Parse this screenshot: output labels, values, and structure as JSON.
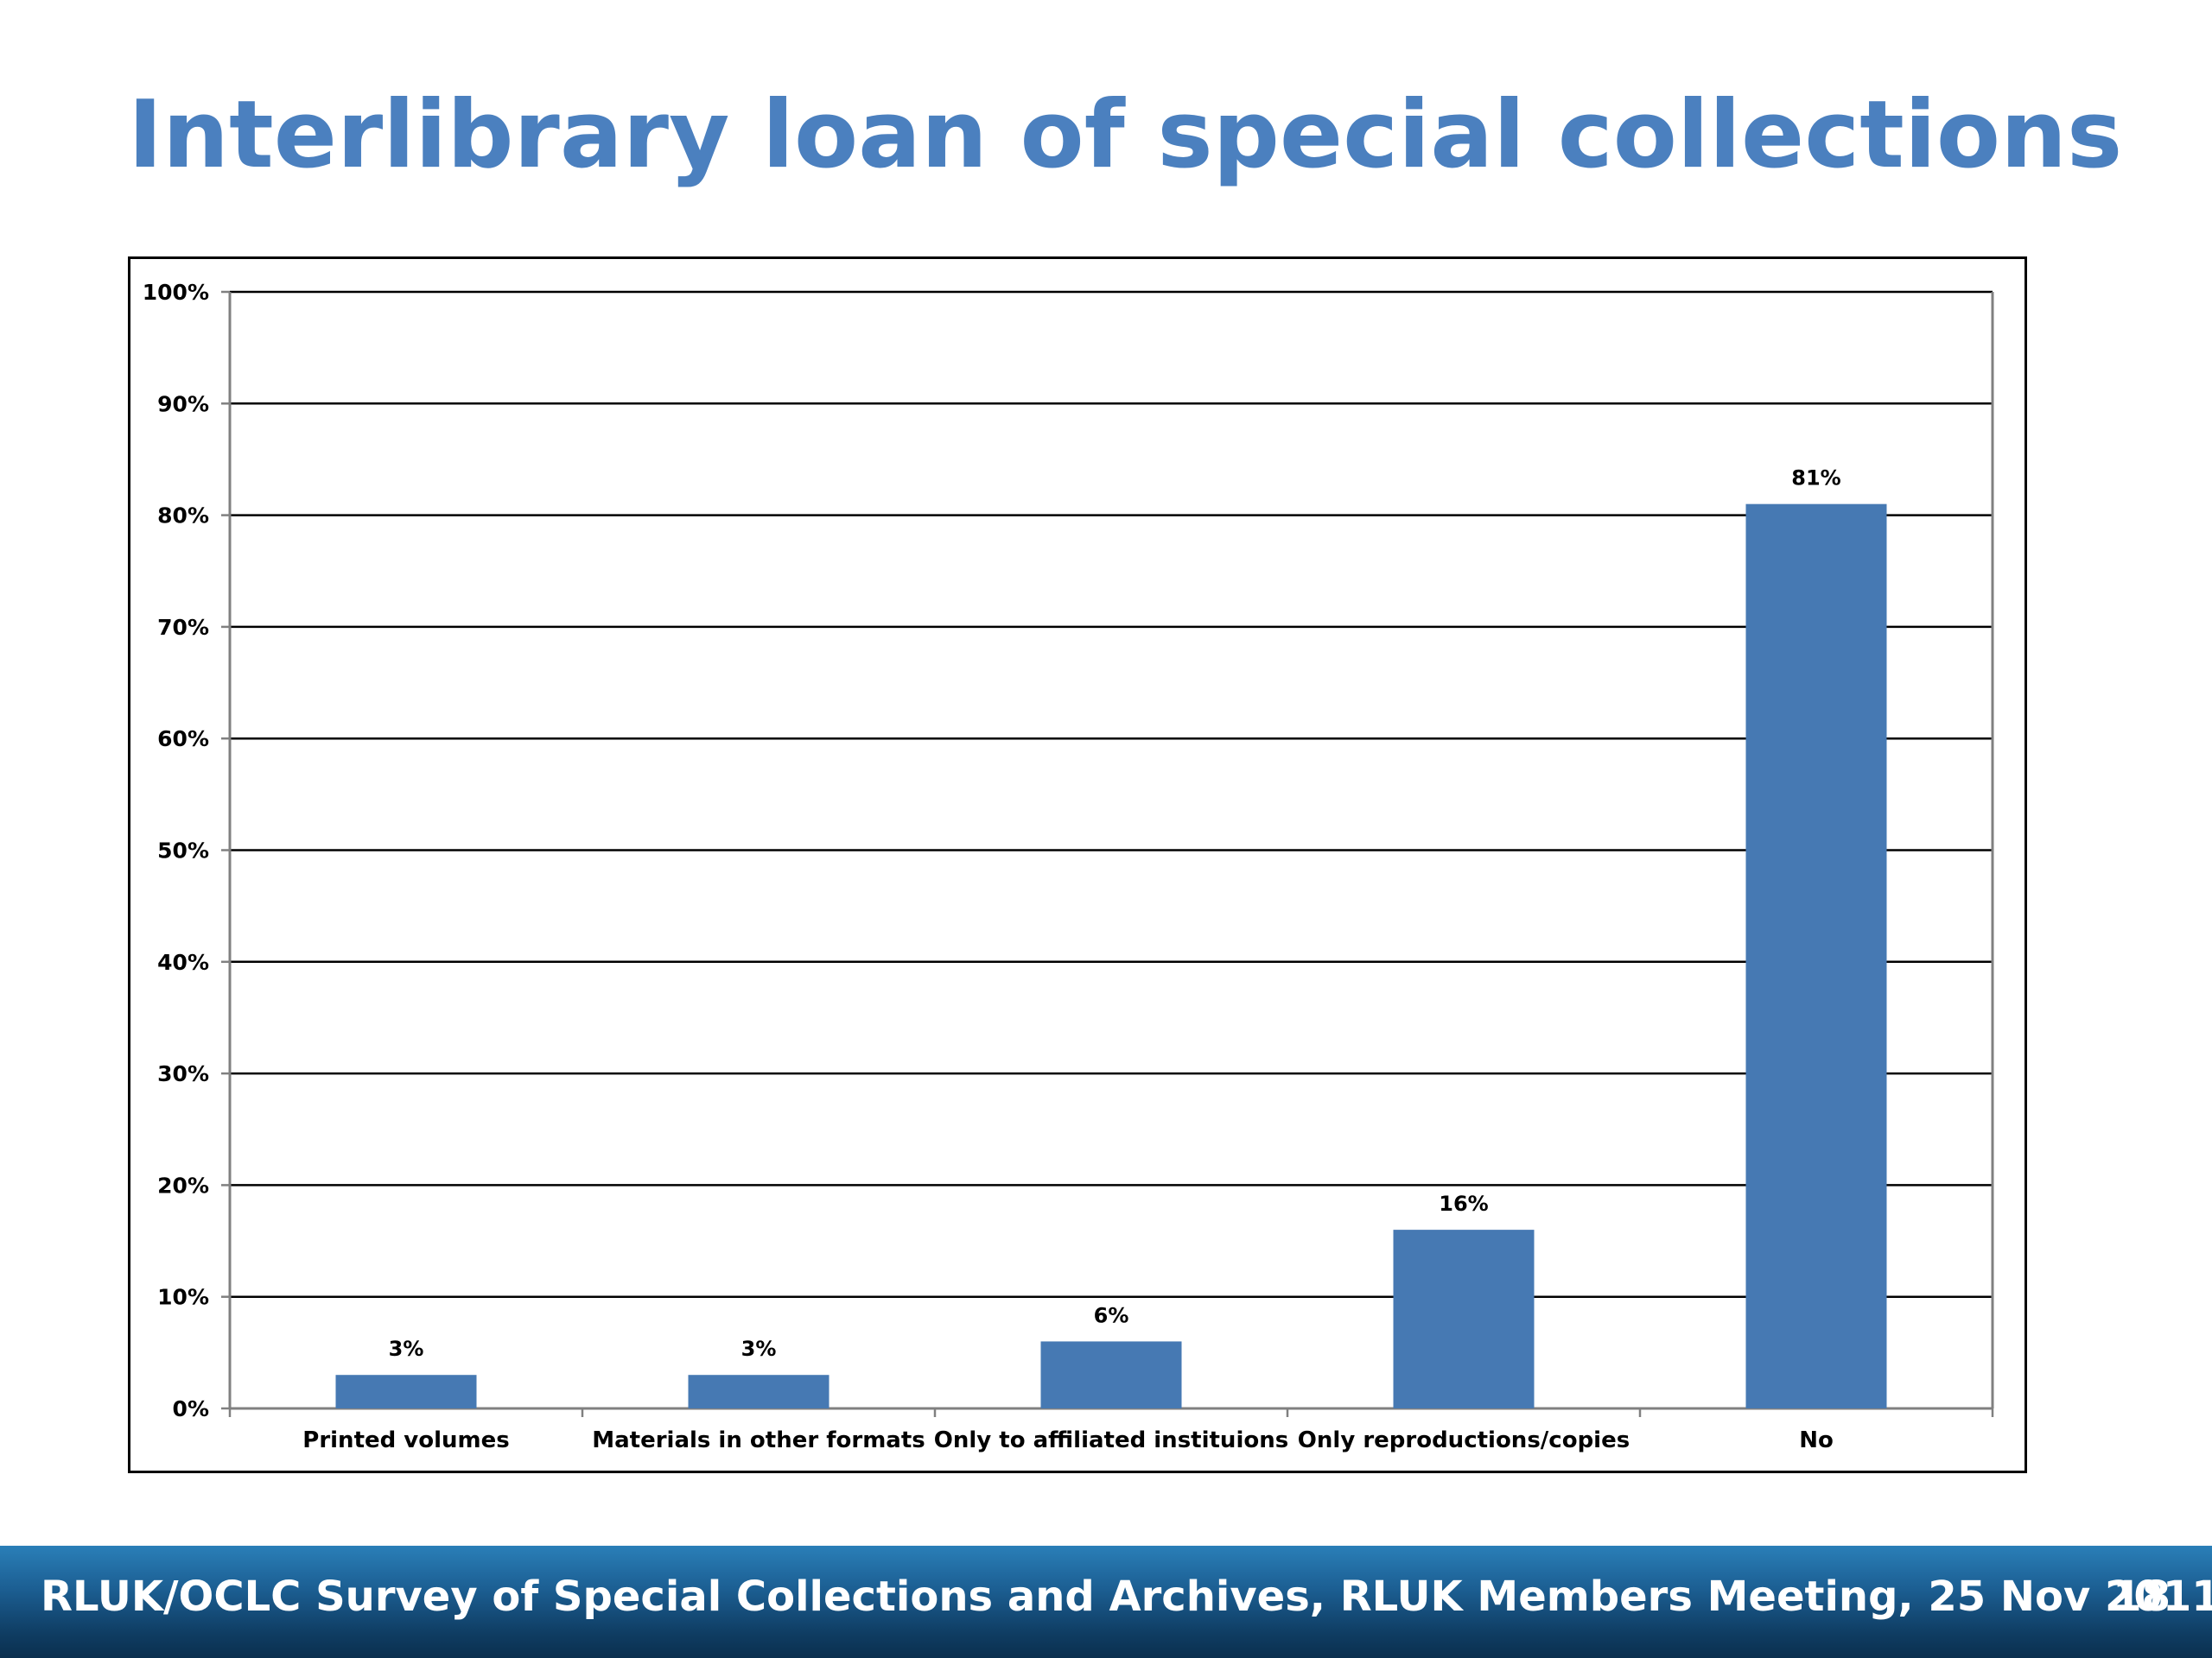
{
  "slide": {
    "title": "Interlibrary loan of special collections"
  },
  "footer": {
    "text": "RLUK/OCLC Survey of Special Collections and Archives, RLUK Members Meeting, 25 Nov 2011",
    "page_number": "18"
  },
  "colors": {
    "title": "#4b80bf",
    "bar": "#4679b3",
    "footer": "#1c5f93"
  },
  "chart_data": {
    "type": "bar",
    "categories": [
      "Printed volumes",
      "Materials in other formats",
      "Only to affiliated instituions",
      "Only reproductions/copies",
      "No"
    ],
    "values": [
      3,
      3,
      6,
      16,
      81
    ],
    "data_labels": [
      "3%",
      "3%",
      "6%",
      "16%",
      "81%"
    ],
    "y_ticks": [
      0,
      10,
      20,
      30,
      40,
      50,
      60,
      70,
      80,
      90,
      100
    ],
    "y_tick_labels": [
      "0%",
      "10%",
      "20%",
      "30%",
      "40%",
      "50%",
      "60%",
      "70%",
      "80%",
      "90%",
      "100%"
    ],
    "ylim": [
      0,
      100
    ],
    "grid": true,
    "legend": "none",
    "title": "",
    "xlabel": "",
    "ylabel": ""
  }
}
